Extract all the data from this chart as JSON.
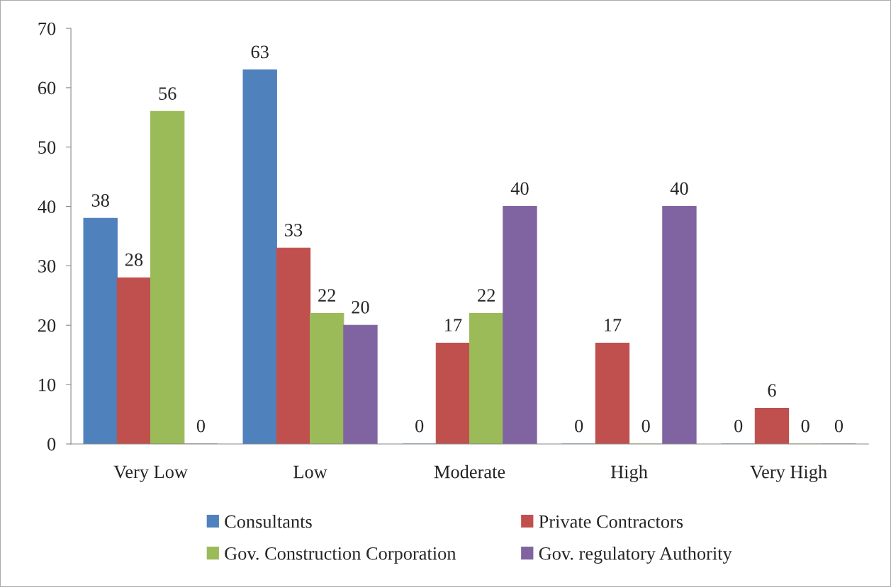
{
  "chart_data": {
    "type": "bar",
    "categories": [
      "Very Low",
      "Low",
      "Moderate",
      "High",
      "Very High"
    ],
    "series": [
      {
        "name": "Consultants",
        "color": "#4f81bd",
        "values": [
          38,
          63,
          0,
          0,
          0
        ]
      },
      {
        "name": "Private Contractors",
        "color": "#c0504d",
        "values": [
          28,
          33,
          17,
          17,
          6
        ]
      },
      {
        "name": "Gov. Construction Corporation",
        "color": "#9bbb59",
        "values": [
          56,
          22,
          22,
          0,
          0
        ]
      },
      {
        "name": "Gov. regulatory Authority",
        "color": "#8064a2",
        "values": [
          0,
          20,
          40,
          40,
          0
        ]
      }
    ],
    "ylim": [
      0,
      70
    ],
    "yticks": [
      0,
      10,
      20,
      30,
      40,
      50,
      60,
      70
    ],
    "data_labels": true,
    "grid": false,
    "legend": "bottom"
  }
}
